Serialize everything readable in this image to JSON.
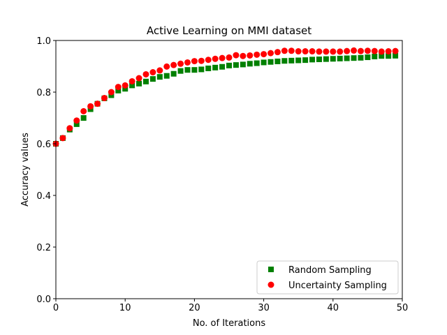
{
  "chart_data": {
    "type": "scatter",
    "title": "Active Learning on MMI dataset",
    "xlabel": "No. of Iterations",
    "ylabel": "Accuracy values",
    "xlim": [
      0,
      50
    ],
    "ylim": [
      0,
      1.0
    ],
    "xticks": [
      0,
      10,
      20,
      30,
      40,
      50
    ],
    "xtick_labels": [
      "0",
      "10",
      "20",
      "30",
      "40",
      "50"
    ],
    "yticks": [
      0,
      0.2,
      0.4,
      0.6,
      0.8,
      1.0
    ],
    "ytick_labels": [
      "0.0",
      "0.2",
      "0.4",
      "0.6",
      "0.8",
      "1.0"
    ],
    "grid": false,
    "legend_position": "bottom-right",
    "x": [
      0,
      1,
      2,
      3,
      4,
      5,
      6,
      7,
      8,
      9,
      10,
      11,
      12,
      13,
      14,
      15,
      16,
      17,
      18,
      19,
      20,
      21,
      22,
      23,
      24,
      25,
      26,
      27,
      28,
      29,
      30,
      31,
      32,
      33,
      34,
      35,
      36,
      37,
      38,
      39,
      40,
      41,
      42,
      43,
      44,
      45,
      46,
      47,
      48,
      49
    ],
    "series": [
      {
        "name": "Random Sampling",
        "marker": "square",
        "color": "#008000",
        "values": [
          0.6,
          0.622,
          0.655,
          0.676,
          0.7,
          0.734,
          0.755,
          0.776,
          0.788,
          0.806,
          0.813,
          0.826,
          0.833,
          0.841,
          0.851,
          0.859,
          0.863,
          0.871,
          0.882,
          0.886,
          0.886,
          0.888,
          0.892,
          0.895,
          0.898,
          0.903,
          0.905,
          0.907,
          0.91,
          0.912,
          0.915,
          0.917,
          0.919,
          0.921,
          0.922,
          0.923,
          0.924,
          0.926,
          0.927,
          0.928,
          0.929,
          0.93,
          0.931,
          0.932,
          0.933,
          0.935,
          0.938,
          0.94,
          0.94,
          0.941
        ]
      },
      {
        "name": "Uncertainty Sampling",
        "marker": "circle",
        "color": "#ff0000",
        "values": [
          0.6,
          0.622,
          0.66,
          0.69,
          0.726,
          0.745,
          0.755,
          0.777,
          0.8,
          0.82,
          0.826,
          0.842,
          0.854,
          0.869,
          0.877,
          0.884,
          0.899,
          0.905,
          0.91,
          0.915,
          0.92,
          0.921,
          0.925,
          0.929,
          0.932,
          0.934,
          0.943,
          0.94,
          0.942,
          0.945,
          0.947,
          0.951,
          0.955,
          0.96,
          0.96,
          0.958,
          0.958,
          0.958,
          0.957,
          0.957,
          0.957,
          0.957,
          0.959,
          0.961,
          0.959,
          0.96,
          0.959,
          0.957,
          0.958,
          0.959
        ]
      }
    ]
  }
}
